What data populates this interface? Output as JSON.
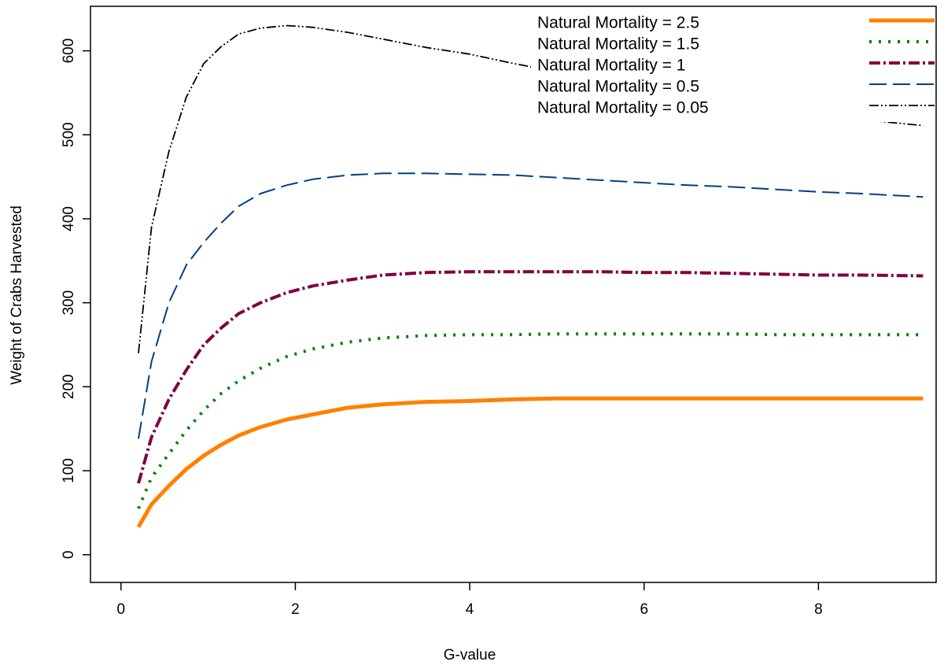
{
  "chart_data": {
    "type": "line",
    "x_label": "G-value",
    "y_label": "Weight of Crabs Harvested",
    "x": [
      0.2,
      0.35,
      0.55,
      0.75,
      0.95,
      1.15,
      1.35,
      1.6,
      1.9,
      2.2,
      2.6,
      3.0,
      3.5,
      4.0,
      4.5,
      5.0,
      5.5,
      6.0,
      6.5,
      7.0,
      7.5,
      8.0,
      8.5,
      9.2
    ],
    "series": [
      {
        "name": "Natural Mortality =  2.5",
        "color": "#ff8000",
        "line_style": "solid",
        "values": [
          33,
          60,
          82,
          102,
          118,
          131,
          142,
          152,
          161,
          167,
          175,
          179,
          182,
          183,
          185,
          186,
          186,
          186,
          186,
          186,
          186,
          186,
          186,
          186
        ]
      },
      {
        "name": "Natural Mortality =  1.5",
        "color": "#008000",
        "line_style": "dotted",
        "values": [
          55,
          92,
          120,
          148,
          172,
          192,
          207,
          222,
          236,
          245,
          253,
          258,
          261,
          262,
          262,
          263,
          263,
          263,
          263,
          263,
          262,
          262,
          262,
          262
        ]
      },
      {
        "name": "Natural Mortality =  1",
        "color": "#800040",
        "line_style": "dashdot",
        "values": [
          85,
          140,
          185,
          220,
          250,
          270,
          287,
          300,
          312,
          320,
          327,
          333,
          336,
          337,
          337,
          337,
          337,
          336,
          336,
          335,
          334,
          333,
          333,
          332
        ]
      },
      {
        "name": "Natural Mortality =  0.5",
        "color": "#004080",
        "line_style": "longdash",
        "values": [
          138,
          230,
          300,
          345,
          372,
          395,
          415,
          430,
          440,
          447,
          452,
          454,
          454,
          453,
          452,
          449,
          446,
          443,
          440,
          438,
          435,
          432,
          430,
          426
        ]
      },
      {
        "name": "Natural Mortality =  0.05",
        "color": "#000000",
        "line_style": "dashdotdot",
        "values": [
          240,
          390,
          480,
          545,
          585,
          605,
          620,
          627,
          630,
          628,
          622,
          614,
          604,
          596,
          585,
          575,
          565,
          555,
          548,
          540,
          532,
          525,
          518,
          511
        ]
      }
    ],
    "xlim": [
      -0.35,
      9.35
    ],
    "xticks": [
      0,
      2,
      4,
      6,
      8
    ],
    "ylim": [
      -33,
      653
    ],
    "yticks": [
      0,
      100,
      200,
      300,
      400,
      500,
      600
    ],
    "legend": "top-right",
    "grid": false
  }
}
